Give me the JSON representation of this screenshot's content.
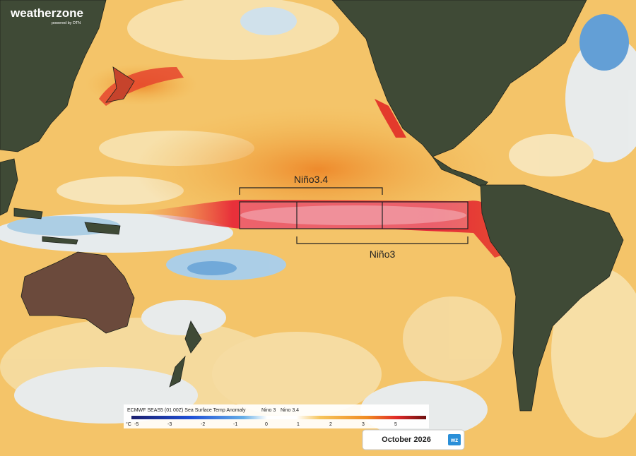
{
  "logo": {
    "name": "weatherzone",
    "tagline": "powered by DTN"
  },
  "regions": {
    "nino34": "Niño3.4",
    "nino3": "Niño3"
  },
  "legend": {
    "title": "ECMWF SEAS5 (01 00Z) Sea Surface Temp Anomaly",
    "items": [
      "Nino 3",
      "Nino 3.4"
    ],
    "unit": "°C",
    "ticks": [
      "-5",
      "-3",
      "-2",
      "-1",
      "0",
      "1",
      "2",
      "3",
      "5"
    ]
  },
  "date": "October 2026",
  "badge": "wz"
}
